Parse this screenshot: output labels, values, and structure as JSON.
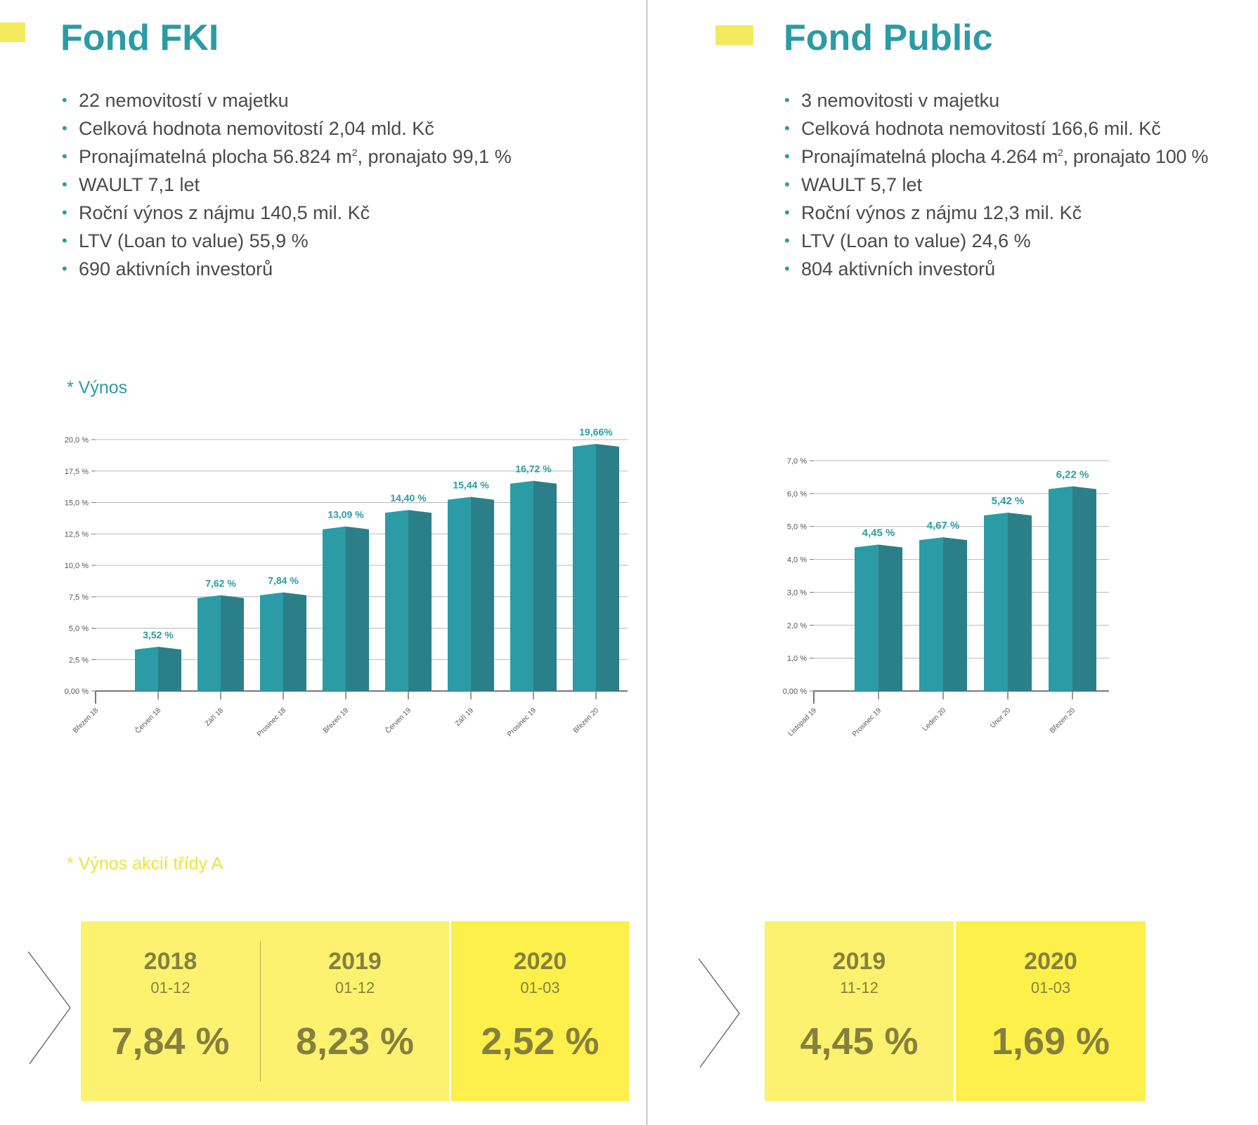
{
  "colors": {
    "teal": "#2b9ba6",
    "teal_dark": "#2b7f88",
    "yellow": "#f3ea5e",
    "yellow_light": "#fdf26f",
    "yellow_strong": "#fdf04a",
    "olive": "#85803f"
  },
  "fki": {
    "title": "Fond FKI",
    "facts": [
      {
        "text": "22 nemovitostí v majetku"
      },
      {
        "text": "Celková hodnota nemovitostí 2,04 mld. Kč"
      },
      {
        "text": "Pronajímatelná plocha 56.824 m",
        "sup": "2",
        "after": ", pronajato 99,1 %"
      },
      {
        "text": "WAULT 7,1 let"
      },
      {
        "text": "Roční výnos z nájmu 140,5 mil. Kč"
      },
      {
        "text": "LTV (Loan to value) 55,9 %"
      },
      {
        "text": "690 aktivních investorů"
      }
    ],
    "chart_label": "* Výnos",
    "yield_label": "* Výnos akcií třídy A",
    "yields": [
      {
        "year": "2018",
        "range": "01-12",
        "value": "7,84 %"
      },
      {
        "year": "2019",
        "range": "01-12",
        "value": "8,23 %"
      },
      {
        "year": "2020",
        "range": "01-03",
        "value": "2,52 %"
      }
    ]
  },
  "public": {
    "title": "Fond Public",
    "facts": [
      {
        "text": "3 nemovitosti v majetku"
      },
      {
        "text": "Celková hodnota nemovitostí 166,6 mil. Kč"
      },
      {
        "text": "Pronajímatelná plocha 4.264 m",
        "sup": "2",
        "after": ", pronajato 100 %"
      },
      {
        "text": "WAULT 5,7 let"
      },
      {
        "text": "Roční výnos z nájmu 12,3 mil. Kč"
      },
      {
        "text": "LTV (Loan to value) 24,6 %"
      },
      {
        "text": "804 aktivních investorů"
      }
    ],
    "yields": [
      {
        "year": "2019",
        "range": "11-12",
        "value": "4,45 %"
      },
      {
        "year": "2020",
        "range": "01-03",
        "value": "1,69 %"
      }
    ]
  },
  "chart_data": [
    {
      "type": "bar",
      "title": "* Výnos",
      "categories": [
        "Březen 18",
        "Červen 18",
        "Září 18",
        "Prosinec 18",
        "Březen 19",
        "Červen 19",
        "Září 19",
        "Prosinec 19",
        "Březen 20"
      ],
      "values": [
        null,
        3.52,
        7.62,
        7.84,
        13.09,
        14.4,
        15.44,
        16.72,
        19.66
      ],
      "value_labels": [
        "",
        "3,52 %",
        "7,62 %",
        "7,84 %",
        "13,09 %",
        "14,40 %",
        "15,44 %",
        "16,72 %",
        "19,66%"
      ],
      "yticks": [
        0,
        2.5,
        5,
        7.5,
        10,
        12.5,
        15,
        17.5,
        20
      ],
      "ytick_labels": [
        "0,00 %",
        "2,5 %",
        "5,0 %",
        "7,5 %",
        "10,0 %",
        "12,5 %",
        "15,0 %",
        "17,5 %",
        "20,0 %"
      ],
      "ylim": [
        0,
        20
      ],
      "grid": true,
      "xlabel": "",
      "ylabel": ""
    },
    {
      "type": "bar",
      "title": "",
      "categories": [
        "Listopad 19",
        "Prosinec 19",
        "Leden 20",
        "Únor 20",
        "Březen 20"
      ],
      "values": [
        null,
        4.45,
        4.67,
        5.42,
        6.22
      ],
      "value_labels": [
        "",
        "4,45 %",
        "4,67 %",
        "5,42 %",
        "6,22 %"
      ],
      "yticks": [
        0,
        1,
        2,
        3,
        4,
        5,
        6,
        7
      ],
      "ytick_labels": [
        "0,00 %",
        "1,0 %",
        "2,0 %",
        "3,0 %",
        "4,0 %",
        "5,0 %",
        "6,0 %",
        "7,0 %"
      ],
      "ylim": [
        0,
        7
      ],
      "grid": true,
      "xlabel": "",
      "ylabel": ""
    }
  ]
}
